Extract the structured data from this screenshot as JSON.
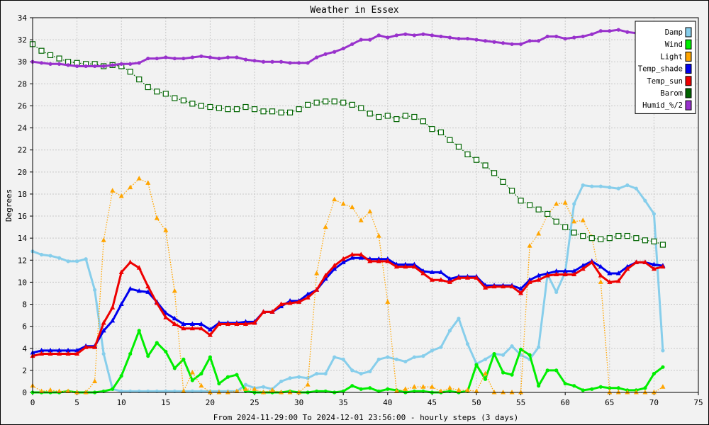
{
  "chart_data": {
    "type": "line",
    "title": "Weather in Essex",
    "xlabel": "From 2024-11-29:00 To 2024-12-01 23:56:00 - hourly steps (3 days)",
    "ylabel": "Degrees",
    "xlim": [
      0,
      75
    ],
    "ylim": [
      0,
      34
    ],
    "xticks": [
      0,
      5,
      10,
      15,
      20,
      25,
      30,
      35,
      40,
      45,
      50,
      55,
      60,
      65,
      70,
      75
    ],
    "yticks": [
      0,
      2,
      4,
      6,
      8,
      10,
      12,
      14,
      16,
      18,
      20,
      22,
      24,
      26,
      28,
      30,
      32,
      34
    ],
    "grid": true,
    "legend_position": "top-right",
    "series": [
      {
        "name": "Damp",
        "color": "#87ceeb",
        "style": "solid",
        "marker": "dot",
        "values": [
          12.8,
          12.5,
          12.4,
          12.2,
          11.9,
          11.9,
          12.1,
          9.3,
          3.5,
          0.3,
          0.1,
          0.1,
          0.1,
          0.1,
          0.1,
          0.1,
          0.1,
          0.1,
          0.1,
          0.1,
          0.1,
          0.1,
          0.1,
          0.1,
          0.7,
          0.4,
          0.5,
          0.3,
          1.0,
          1.3,
          1.4,
          1.3,
          1.7,
          1.7,
          3.2,
          3.0,
          2.0,
          1.7,
          1.9,
          3.0,
          3.2,
          3.0,
          2.8,
          3.2,
          3.3,
          3.8,
          4.1,
          5.6,
          6.7,
          4.4,
          2.6,
          3.0,
          3.5,
          3.4,
          4.2,
          3.4,
          3.0,
          4.1,
          10.7,
          9.1,
          10.9,
          17.1,
          18.8,
          18.7,
          18.7,
          18.6,
          18.5,
          18.8,
          18.5,
          17.4,
          16.2,
          3.8
        ]
      },
      {
        "name": "Wind",
        "color": "#00ee00",
        "style": "solid",
        "marker": "dot",
        "values": [
          0.0,
          0.0,
          0.0,
          0.0,
          0.1,
          0.0,
          0.0,
          0.0,
          0.1,
          0.3,
          1.5,
          3.5,
          5.6,
          3.3,
          4.5,
          3.7,
          2.2,
          3.0,
          1.1,
          1.7,
          3.2,
          0.8,
          1.4,
          1.6,
          0.1,
          0.0,
          0.0,
          0.0,
          0.0,
          0.1,
          0.0,
          0.0,
          0.1,
          0.1,
          0.0,
          0.1,
          0.6,
          0.3,
          0.4,
          0.1,
          0.3,
          0.2,
          0.0,
          0.1,
          0.1,
          0.0,
          0.0,
          0.1,
          0.0,
          0.1,
          2.5,
          1.2,
          3.5,
          1.8,
          1.6,
          3.9,
          3.4,
          0.6,
          2.0,
          2.0,
          0.8,
          0.6,
          0.2,
          0.3,
          0.5,
          0.4,
          0.4,
          0.2,
          0.2,
          0.4,
          1.7,
          2.3
        ]
      },
      {
        "name": "Light",
        "color": "#ffa500",
        "style": "dotted",
        "marker": "triangle",
        "values": [
          0.6,
          0.1,
          0.2,
          0.1,
          0.1,
          0.0,
          0.0,
          1.0,
          13.8,
          18.3,
          17.8,
          18.6,
          19.4,
          19.0,
          15.8,
          14.7,
          9.2,
          0.1,
          1.8,
          0.6,
          0.0,
          0.0,
          0.0,
          0.1,
          0.3,
          0.3,
          0.0,
          0.2,
          0.0,
          0.0,
          0.0,
          0.7,
          10.8,
          15.0,
          17.5,
          17.1,
          16.8,
          15.6,
          16.4,
          14.2,
          8.2,
          0.1,
          0.3,
          0.5,
          0.5,
          0.5,
          0.1,
          0.4,
          0.2,
          0.2,
          0.1,
          1.7,
          0.0,
          0.0,
          0.0,
          0.0,
          13.3,
          14.4,
          16.1,
          17.1,
          17.2,
          15.5,
          15.6,
          14.1,
          10.0,
          0.0,
          0.0,
          0.0,
          0.0,
          0.0,
          0.0,
          0.5
        ]
      },
      {
        "name": "Temp_shade",
        "color": "#0000ee",
        "style": "solid",
        "marker": "triangle",
        "values": [
          3.6,
          3.8,
          3.8,
          3.8,
          3.8,
          3.8,
          4.2,
          4.2,
          5.6,
          6.5,
          8.0,
          9.4,
          9.2,
          9.1,
          8.2,
          7.2,
          6.7,
          6.2,
          6.2,
          6.2,
          5.7,
          6.3,
          6.3,
          6.3,
          6.4,
          6.4,
          7.3,
          7.3,
          7.8,
          8.3,
          8.3,
          8.9,
          9.3,
          10.3,
          11.2,
          11.8,
          12.2,
          12.2,
          12.1,
          12.1,
          12.1,
          11.6,
          11.6,
          11.6,
          11.0,
          10.9,
          10.9,
          10.3,
          10.5,
          10.5,
          10.5,
          9.7,
          9.7,
          9.7,
          9.7,
          9.4,
          10.2,
          10.6,
          10.8,
          11.0,
          11.0,
          11.0,
          11.5,
          11.9,
          11.4,
          10.8,
          10.8,
          11.4,
          11.8,
          11.8,
          11.6,
          11.5
        ]
      },
      {
        "name": "Temp_sun",
        "color": "#ee0000",
        "style": "solid",
        "marker": "triangle",
        "values": [
          3.3,
          3.5,
          3.5,
          3.5,
          3.5,
          3.5,
          4.1,
          4.1,
          6.3,
          7.7,
          10.9,
          11.8,
          11.3,
          9.6,
          8.1,
          6.8,
          6.2,
          5.8,
          5.8,
          5.8,
          5.2,
          6.2,
          6.2,
          6.2,
          6.2,
          6.3,
          7.3,
          7.3,
          8.0,
          8.1,
          8.2,
          8.6,
          9.3,
          10.6,
          11.5,
          12.1,
          12.5,
          12.5,
          11.9,
          11.9,
          11.9,
          11.4,
          11.4,
          11.4,
          10.8,
          10.2,
          10.2,
          10.0,
          10.4,
          10.4,
          10.4,
          9.5,
          9.6,
          9.6,
          9.6,
          9.0,
          10.0,
          10.2,
          10.6,
          10.7,
          10.7,
          10.7,
          11.2,
          11.8,
          10.6,
          10.0,
          10.1,
          11.2,
          11.8,
          11.8,
          11.2,
          11.4
        ]
      },
      {
        "name": "Barom",
        "color": "#006400",
        "style": "dotted",
        "marker": "square",
        "values": [
          31.6,
          31.0,
          30.6,
          30.3,
          30.0,
          29.9,
          29.8,
          29.8,
          29.6,
          29.7,
          29.6,
          29.1,
          28.4,
          27.7,
          27.3,
          27.1,
          26.7,
          26.5,
          26.2,
          26.0,
          25.9,
          25.8,
          25.7,
          25.7,
          25.9,
          25.7,
          25.5,
          25.5,
          25.4,
          25.4,
          25.7,
          26.1,
          26.3,
          26.4,
          26.4,
          26.3,
          26.1,
          25.8,
          25.3,
          25.0,
          25.1,
          24.8,
          25.1,
          25.0,
          24.6,
          23.9,
          23.6,
          22.9,
          22.3,
          21.6,
          21.1,
          20.6,
          19.9,
          19.1,
          18.3,
          17.4,
          17.0,
          16.6,
          16.2,
          15.5,
          15.0,
          14.5,
          14.2,
          14.0,
          13.9,
          14.0,
          14.2,
          14.2,
          14.0,
          13.8,
          13.7,
          13.4
        ]
      },
      {
        "name": "Humid_%/2",
        "color": "#9932cc",
        "style": "solid",
        "marker": "dot",
        "values": [
          30.0,
          29.9,
          29.8,
          29.8,
          29.7,
          29.6,
          29.6,
          29.6,
          29.6,
          29.7,
          29.8,
          29.8,
          29.9,
          30.3,
          30.3,
          30.4,
          30.3,
          30.3,
          30.4,
          30.5,
          30.4,
          30.3,
          30.4,
          30.4,
          30.2,
          30.1,
          30.0,
          30.0,
          30.0,
          29.9,
          29.9,
          29.9,
          30.4,
          30.7,
          30.9,
          31.2,
          31.6,
          32.0,
          32.0,
          32.4,
          32.2,
          32.4,
          32.5,
          32.4,
          32.5,
          32.4,
          32.3,
          32.2,
          32.1,
          32.1,
          32.0,
          31.9,
          31.8,
          31.7,
          31.6,
          31.6,
          31.9,
          31.9,
          32.3,
          32.3,
          32.1,
          32.2,
          32.3,
          32.5,
          32.8,
          32.8,
          32.9,
          32.7,
          32.6,
          32.4,
          32.3,
          32.3
        ]
      }
    ]
  }
}
